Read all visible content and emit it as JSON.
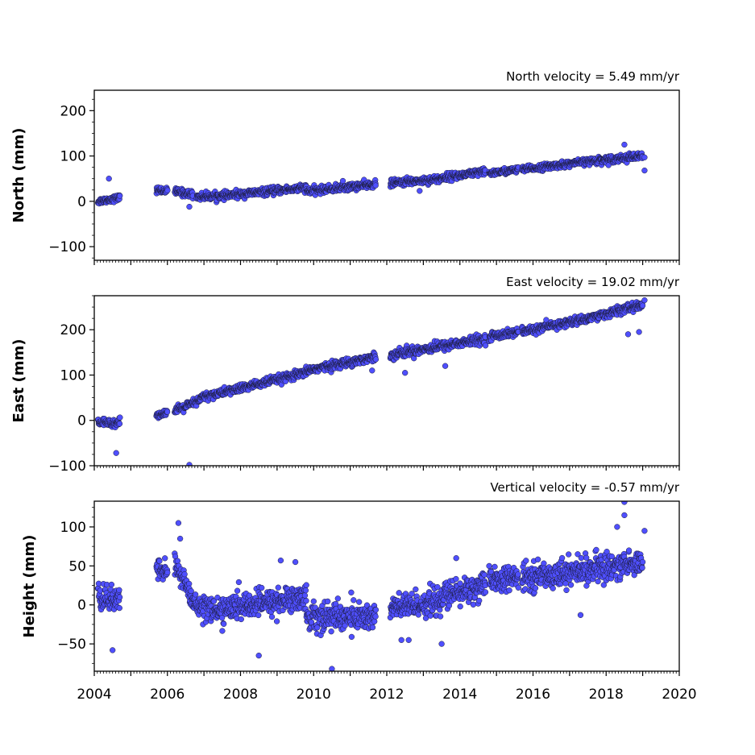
{
  "chart_data": [
    {
      "type": "scatter",
      "title": "North velocity = 5.49 mm/yr",
      "xlabel": "",
      "ylabel": "North (mm)",
      "xlim": [
        2004,
        2020
      ],
      "ylim": [
        -130,
        245
      ],
      "y_ticks": [
        -100,
        0,
        100,
        200
      ],
      "velocity_mm_per_yr": 5.49,
      "series": [
        {
          "color": "#4f4fff",
          "segments": [
            {
              "x_start": 2004.1,
              "x_end": 2004.7,
              "y_start": 0,
              "y_end": 8,
              "scatter": 6
            },
            {
              "x_start": 2005.7,
              "x_end": 2006.0,
              "y_start": 25,
              "y_end": 23,
              "scatter": 6
            },
            {
              "x_start": 2006.2,
              "x_end": 2006.7,
              "y_start": 22,
              "y_end": 15,
              "scatter": 7
            },
            {
              "x_start": 2006.8,
              "x_end": 2007.5,
              "y_start": 10,
              "y_end": 12,
              "scatter": 7
            },
            {
              "x_start": 2007.5,
              "x_end": 2009.8,
              "y_start": 12,
              "y_end": 30,
              "scatter": 7
            },
            {
              "x_start": 2009.8,
              "x_end": 2011.7,
              "y_start": 22,
              "y_end": 38,
              "scatter": 7
            },
            {
              "x_start": 2012.1,
              "x_end": 2013.5,
              "y_start": 40,
              "y_end": 50,
              "scatter": 7
            },
            {
              "x_start": 2013.5,
              "x_end": 2014.7,
              "y_start": 52,
              "y_end": 65,
              "scatter": 7
            },
            {
              "x_start": 2014.8,
              "x_end": 2015.6,
              "y_start": 62,
              "y_end": 70,
              "scatter": 6
            },
            {
              "x_start": 2015.7,
              "x_end": 2017.5,
              "y_start": 70,
              "y_end": 88,
              "scatter": 6
            },
            {
              "x_start": 2017.5,
              "x_end": 2019.0,
              "y_start": 88,
              "y_end": 100,
              "scatter": 7
            }
          ],
          "outliers": [
            {
              "x": 2004.4,
              "y": 50
            },
            {
              "x": 2006.6,
              "y": -12
            },
            {
              "x": 2012.9,
              "y": 23
            },
            {
              "x": 2018.5,
              "y": 125
            },
            {
              "x": 2019.05,
              "y": 68
            },
            {
              "x": 2019.05,
              "y": 97
            },
            {
              "x": 2010.8,
              "y": 45
            }
          ]
        }
      ]
    },
    {
      "type": "scatter",
      "title": "East velocity = 19.02 mm/yr",
      "xlabel": "",
      "ylabel": "East (mm)",
      "xlim": [
        2004,
        2020
      ],
      "ylim": [
        -100,
        275
      ],
      "y_ticks": [
        -100,
        0,
        100,
        200
      ],
      "velocity_mm_per_yr": 19.02,
      "series": [
        {
          "color": "#4f4fff",
          "segments": [
            {
              "x_start": 2004.1,
              "x_end": 2004.7,
              "y_start": -5,
              "y_end": -5,
              "scatter": 8
            },
            {
              "x_start": 2005.7,
              "x_end": 2006.0,
              "y_start": 12,
              "y_end": 18,
              "scatter": 6
            },
            {
              "x_start": 2006.2,
              "x_end": 2006.9,
              "y_start": 20,
              "y_end": 45,
              "scatter": 8
            },
            {
              "x_start": 2006.9,
              "x_end": 2009.8,
              "y_start": 50,
              "y_end": 105,
              "scatter": 8
            },
            {
              "x_start": 2009.8,
              "x_end": 2011.7,
              "y_start": 110,
              "y_end": 140,
              "scatter": 8
            },
            {
              "x_start": 2012.1,
              "x_end": 2014.7,
              "y_start": 145,
              "y_end": 180,
              "scatter": 9
            },
            {
              "x_start": 2014.8,
              "x_end": 2015.6,
              "y_start": 185,
              "y_end": 195,
              "scatter": 8
            },
            {
              "x_start": 2015.7,
              "x_end": 2017.5,
              "y_start": 195,
              "y_end": 225,
              "scatter": 8
            },
            {
              "x_start": 2017.5,
              "x_end": 2019.0,
              "y_start": 225,
              "y_end": 255,
              "scatter": 8
            }
          ],
          "outliers": [
            {
              "x": 2004.6,
              "y": -72
            },
            {
              "x": 2006.6,
              "y": -98
            },
            {
              "x": 2012.5,
              "y": 105
            },
            {
              "x": 2018.6,
              "y": 190
            },
            {
              "x": 2018.9,
              "y": 195
            },
            {
              "x": 2019.05,
              "y": 265
            },
            {
              "x": 2011.6,
              "y": 110
            },
            {
              "x": 2013.6,
              "y": 120
            }
          ]
        }
      ]
    },
    {
      "type": "scatter",
      "title": "Vertical velocity = -0.57 mm/yr",
      "xlabel": "",
      "ylabel": "Height (mm)",
      "xlim": [
        2004,
        2020
      ],
      "ylim": [
        -85,
        133
      ],
      "y_ticks": [
        -50,
        0,
        50,
        100
      ],
      "x_ticks": [
        2004,
        2006,
        2008,
        2010,
        2012,
        2014,
        2016,
        2018,
        2020
      ],
      "velocity_mm_per_yr": -0.57,
      "series": [
        {
          "color": "#4f4fff",
          "segments": [
            {
              "x_start": 2004.1,
              "x_end": 2004.7,
              "y_start": 10,
              "y_end": 5,
              "scatter": 15
            },
            {
              "x_start": 2005.7,
              "x_end": 2006.0,
              "y_start": 45,
              "y_end": 45,
              "scatter": 12
            },
            {
              "x_start": 2006.2,
              "x_end": 2006.6,
              "y_start": 50,
              "y_end": 20,
              "scatter": 14
            },
            {
              "x_start": 2006.6,
              "x_end": 2007.5,
              "y_start": 5,
              "y_end": -10,
              "scatter": 14
            },
            {
              "x_start": 2007.5,
              "x_end": 2009.8,
              "y_start": -5,
              "y_end": 10,
              "scatter": 15
            },
            {
              "x_start": 2009.8,
              "x_end": 2011.7,
              "y_start": -15,
              "y_end": -15,
              "scatter": 17
            },
            {
              "x_start": 2012.1,
              "x_end": 2013.5,
              "y_start": -5,
              "y_end": 5,
              "scatter": 15
            },
            {
              "x_start": 2013.5,
              "x_end": 2014.7,
              "y_start": 10,
              "y_end": 25,
              "scatter": 16
            },
            {
              "x_start": 2014.8,
              "x_end": 2015.6,
              "y_start": 30,
              "y_end": 35,
              "scatter": 14
            },
            {
              "x_start": 2015.7,
              "x_end": 2017.5,
              "y_start": 35,
              "y_end": 45,
              "scatter": 15
            },
            {
              "x_start": 2017.5,
              "x_end": 2019.0,
              "y_start": 45,
              "y_end": 55,
              "scatter": 16
            }
          ],
          "outliers": [
            {
              "x": 2004.5,
              "y": -58
            },
            {
              "x": 2006.3,
              "y": 105
            },
            {
              "x": 2006.35,
              "y": 85
            },
            {
              "x": 2008.5,
              "y": -65
            },
            {
              "x": 2009.1,
              "y": 57
            },
            {
              "x": 2009.5,
              "y": 55
            },
            {
              "x": 2010.5,
              "y": -82
            },
            {
              "x": 2012.4,
              "y": -45
            },
            {
              "x": 2012.6,
              "y": -45
            },
            {
              "x": 2013.5,
              "y": -50
            },
            {
              "x": 2013.9,
              "y": 60
            },
            {
              "x": 2017.3,
              "y": -13
            },
            {
              "x": 2018.5,
              "y": 132
            },
            {
              "x": 2018.5,
              "y": 115
            },
            {
              "x": 2018.3,
              "y": 100
            },
            {
              "x": 2019.05,
              "y": 95
            }
          ]
        }
      ]
    }
  ]
}
